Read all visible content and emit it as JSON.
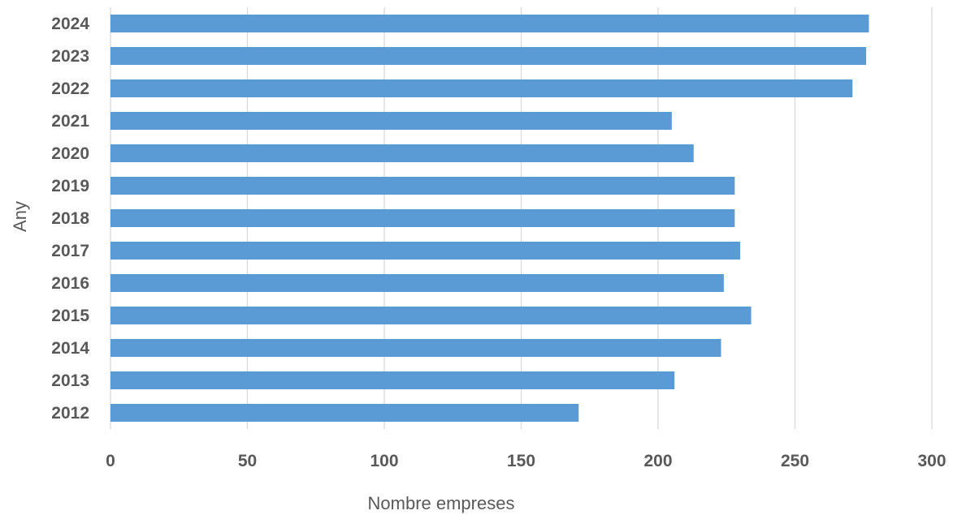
{
  "chart_data": {
    "type": "bar",
    "orientation": "horizontal",
    "title": "",
    "xlabel": "Nombre empreses",
    "ylabel": "Any",
    "categories": [
      "2012",
      "2013",
      "2014",
      "2015",
      "2016",
      "2017",
      "2018",
      "2019",
      "2020",
      "2021",
      "2022",
      "2023",
      "2024"
    ],
    "values": [
      171,
      206,
      223,
      234,
      224,
      230,
      228,
      228,
      213,
      205,
      271,
      276,
      277
    ],
    "xlim": [
      0,
      300
    ],
    "xticks": [
      "0",
      "50",
      "100",
      "150",
      "200",
      "250",
      "300"
    ],
    "grid": "vertical",
    "legend": "none",
    "colors": {
      "bar": "#5b9bd5",
      "grid": "#d9d9d9",
      "text": "#595959"
    }
  }
}
